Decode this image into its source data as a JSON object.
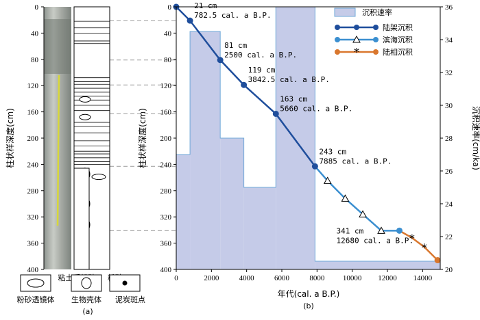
{
  "panel_a": {
    "y_ticks": [
      "0",
      "40",
      "80",
      "120",
      "160",
      "200",
      "240",
      "280",
      "320",
      "360",
      "400"
    ],
    "ylabel": "柱状样深度(cm)",
    "column_labels": [
      "粘土质粉砂",
      "粉砂"
    ],
    "legend_items": [
      "粉砂透镜体",
      "生物壳体",
      "泥炭斑点"
    ],
    "caption": "(a)"
  },
  "chart_data": {
    "type": "line",
    "caption": "(b)",
    "xlabel": "年代(cal. a B.P.)",
    "ylabel_left": "柱状样深度(cm)",
    "ylabel_right": "沉积速率(cm/ka)",
    "xlim": [
      0,
      15000
    ],
    "ylim_left": [
      0,
      400
    ],
    "ylim_right": [
      20,
      36
    ],
    "x_ticks": [
      "0",
      "2000",
      "4000",
      "6000",
      "8000",
      "10000",
      "12000",
      "14000"
    ],
    "y_left_ticks": [
      "0",
      "40",
      "80",
      "120",
      "160",
      "200",
      "240",
      "280",
      "320",
      "360",
      "400"
    ],
    "y_right_ticks": [
      "20",
      "22",
      "24",
      "26",
      "28",
      "30",
      "32",
      "34",
      "36"
    ],
    "rate_series": {
      "name": "沉积速率",
      "color": "#c5cbe8",
      "edge": "#6fa8d8",
      "steps": [
        {
          "x0": 0,
          "x1": 782.5,
          "rate": 27
        },
        {
          "x0": 782.5,
          "x1": 2500,
          "rate": 34.5
        },
        {
          "x0": 2500,
          "x1": 3842.5,
          "rate": 28
        },
        {
          "x0": 3842.5,
          "x1": 5660,
          "rate": 25
        },
        {
          "x0": 5660,
          "x1": 7885,
          "rate": 36
        },
        {
          "x0": 7885,
          "x1": 15000,
          "rate": 20.5
        }
      ]
    },
    "series": [
      {
        "name": "陆架沉积",
        "color": "#1f4e9c",
        "marker": "circle",
        "points": [
          [
            0,
            0
          ],
          [
            782.5,
            21
          ],
          [
            2500,
            81
          ],
          [
            3842.5,
            119
          ],
          [
            5660,
            163
          ],
          [
            7885,
            243
          ]
        ]
      },
      {
        "name": "滨海沉积",
        "color": "#3b8fd0",
        "marker": "triangle",
        "points": [
          [
            7885,
            243
          ],
          [
            8600,
            265
          ],
          [
            9600,
            292
          ],
          [
            10600,
            316
          ],
          [
            11650,
            341
          ],
          [
            12680,
            341
          ]
        ]
      },
      {
        "name": "陆相沉积",
        "color": "#d9772e",
        "marker": "star",
        "points": [
          [
            12680,
            341
          ],
          [
            13400,
            352
          ],
          [
            14100,
            366
          ],
          [
            14850,
            386
          ]
        ]
      }
    ],
    "annotations": [
      {
        "x": 782.5,
        "y": 21,
        "line1": "21 cm",
        "line2": "782.5 cal. a B.P."
      },
      {
        "x": 2500,
        "y": 81,
        "line1": "81 cm",
        "line2": "2500 cal. a B.P."
      },
      {
        "x": 3842.5,
        "y": 119,
        "line1": "119 cm",
        "line2": "3842.5 cal. a B.P."
      },
      {
        "x": 5660,
        "y": 163,
        "line1": "163 cm",
        "line2": "5660 cal. a B.P."
      },
      {
        "x": 7885,
        "y": 243,
        "line1": "243 cm",
        "line2": "7885 cal. a B.P."
      },
      {
        "x": 12680,
        "y": 341,
        "line1": "341 cm",
        "line2": "12680 cal. a B.P."
      }
    ],
    "dashed_depths": [
      21,
      81,
      119,
      163,
      243,
      341
    ],
    "legend": [
      "沉积速率",
      "陆架沉积",
      "滨海沉积",
      "陆相沉积"
    ]
  }
}
